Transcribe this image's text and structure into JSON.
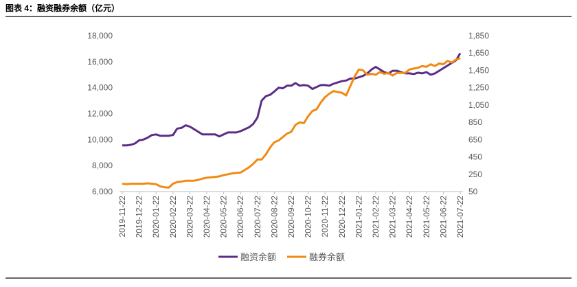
{
  "chart_data": {
    "type": "line",
    "title": "图表 4：融资融券余额（亿元）",
    "categories": [
      "2019-11-22",
      null,
      null,
      null,
      "2019-12-22",
      null,
      null,
      null,
      "2020-01-22",
      null,
      null,
      null,
      "2020-02-22",
      null,
      null,
      null,
      "2020-03-22",
      null,
      null,
      null,
      "2020-04-22",
      null,
      null,
      null,
      "2020-05-22",
      null,
      null,
      null,
      "2020-06-22",
      null,
      null,
      null,
      "2020-07-22",
      null,
      null,
      null,
      "2020-08-22",
      null,
      null,
      null,
      "2020-09-22",
      null,
      null,
      null,
      "2020-10-22",
      null,
      null,
      null,
      "2020-11-22",
      null,
      null,
      null,
      "2020-12-22",
      null,
      null,
      null,
      "2021-01-22",
      null,
      null,
      null,
      "2021-02-22",
      null,
      null,
      null,
      "2021-03-22",
      null,
      null,
      null,
      "2021-04-22",
      null,
      null,
      null,
      "2021-05-22",
      null,
      null,
      null,
      "2021-06-22",
      null,
      null,
      null,
      "2021-07-22"
    ],
    "series": [
      {
        "name": "融资余额",
        "color": "#5b2d86",
        "axis": "y",
        "values": [
          9550,
          9550,
          9600,
          9700,
          9950,
          10000,
          10150,
          10350,
          10400,
          10300,
          10300,
          10300,
          10350,
          10850,
          10900,
          11100,
          11000,
          10800,
          10600,
          10400,
          10400,
          10400,
          10400,
          10250,
          10400,
          10550,
          10550,
          10550,
          10650,
          10800,
          10950,
          11200,
          11700,
          13000,
          13350,
          13450,
          13700,
          14000,
          13950,
          14150,
          14150,
          14350,
          14150,
          14200,
          14150,
          13900,
          14050,
          14200,
          14200,
          14150,
          14300,
          14400,
          14500,
          14550,
          14700,
          14700,
          14800,
          14900,
          15100,
          15400,
          15600,
          15400,
          15200,
          15100,
          15300,
          15300,
          15200,
          15100,
          15100,
          15050,
          15150,
          15100,
          15200,
          15000,
          15100,
          15300,
          15500,
          15700,
          15900,
          16100,
          16650
        ]
      },
      {
        "name": "融券余额",
        "color": "#f08a12",
        "axis": "y2",
        "values": [
          140,
          135,
          140,
          140,
          140,
          140,
          145,
          140,
          135,
          110,
          100,
          95,
          140,
          160,
          165,
          175,
          175,
          175,
          185,
          200,
          210,
          215,
          220,
          225,
          240,
          250,
          260,
          265,
          270,
          300,
          330,
          370,
          420,
          420,
          480,
          560,
          620,
          640,
          680,
          720,
          740,
          820,
          850,
          840,
          920,
          980,
          1000,
          1080,
          1140,
          1180,
          1210,
          1200,
          1190,
          1160,
          1270,
          1380,
          1460,
          1450,
          1400,
          1410,
          1400,
          1430,
          1410,
          1420,
          1390,
          1420,
          1420,
          1420,
          1460,
          1470,
          1480,
          1500,
          1490,
          1520,
          1500,
          1530,
          1520,
          1560,
          1540,
          1575,
          1590
        ]
      }
    ],
    "ylim": [
      6000,
      18000
    ],
    "yticks": [
      {
        "value": 6000,
        "label": "6,000"
      },
      {
        "value": 8000,
        "label": "8,000"
      },
      {
        "value": 10000,
        "label": "10,000"
      },
      {
        "value": 12000,
        "label": "12,000"
      },
      {
        "value": 14000,
        "label": "14,000"
      },
      {
        "value": 16000,
        "label": "16,000"
      },
      {
        "value": 18000,
        "label": "18,000"
      }
    ],
    "y2lim": [
      50,
      1850
    ],
    "y2ticks": [
      50,
      250,
      450,
      650,
      850,
      {
        "value": 1050,
        "label": "1,050"
      },
      {
        "value": 1250,
        "label": "1,250"
      },
      {
        "value": 1450,
        "label": "1,450"
      },
      {
        "value": 1650,
        "label": "1,650"
      },
      {
        "value": 1850,
        "label": "1,850"
      }
    ],
    "grid": false
  }
}
